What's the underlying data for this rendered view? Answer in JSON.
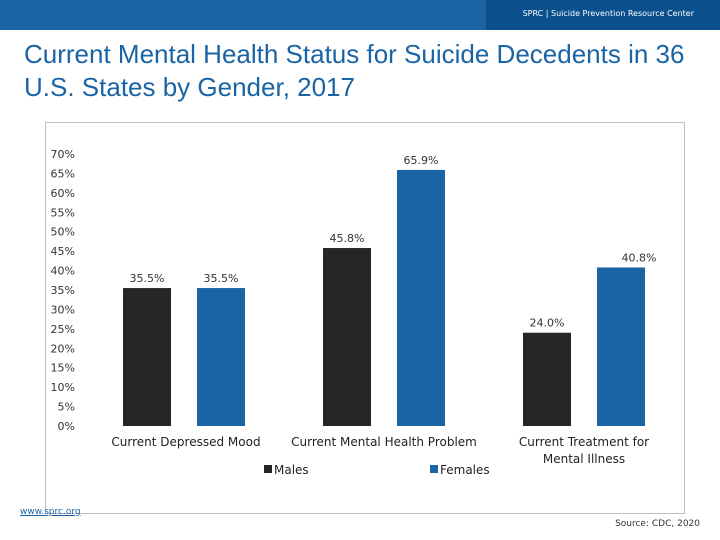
{
  "header": {
    "org_text": "SPRC  |  Suicide Prevention Resource Center"
  },
  "title": "Current Mental Health Status for Suicide Decedents in 36 U.S. States by Gender, 2017",
  "footer": {
    "website": "www.sprc.org",
    "source": "Source: CDC, 2020"
  },
  "colors": {
    "males": "#262626",
    "females": "#1a64a6",
    "brand": "#1a64a6"
  },
  "chart_data": {
    "type": "bar",
    "title": "Current Mental Health Status for Suicide Decedents in 36 U.S. States by Gender, 2017",
    "categories": [
      "Current Depressed Mood",
      "Current Mental Health Problem",
      "Current Treatment for Mental Illness"
    ],
    "category_lines": [
      [
        "Current Depressed Mood"
      ],
      [
        "Current Mental Health Problem"
      ],
      [
        "Current Treatment for",
        "Mental Illness"
      ]
    ],
    "series": [
      {
        "name": "Males",
        "values": [
          35.5,
          45.8,
          24.0
        ],
        "labels": [
          "35.5%",
          "45.8%",
          "24.0%"
        ]
      },
      {
        "name": "Females",
        "values": [
          35.5,
          65.9,
          40.8
        ],
        "labels": [
          "35.5%",
          "65.9%",
          "40.8%"
        ]
      }
    ],
    "ylim": [
      0,
      70
    ],
    "yticks": [
      "0%",
      "5%",
      "10%",
      "15%",
      "20%",
      "25%",
      "30%",
      "35%",
      "40%",
      "45%",
      "50%",
      "55%",
      "60%",
      "65%",
      "70%"
    ],
    "xlabel": "",
    "ylabel": "",
    "grid": false,
    "legend_position": "bottom"
  }
}
